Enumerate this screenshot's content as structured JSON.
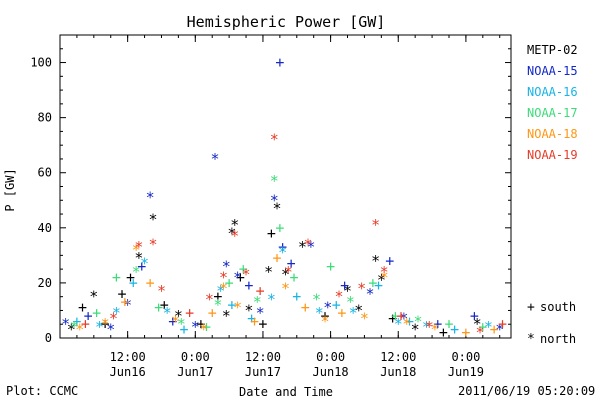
{
  "chart_data": {
    "type": "scatter",
    "title": "Hemispheric Power [GW]",
    "xlabel": "Date and Time",
    "ylabel": "P [GW]",
    "xlim": [
      "2011-06-16 00:00",
      "2011-06-19 08:00"
    ],
    "ylim": [
      0,
      110
    ],
    "yticks": [
      0,
      20,
      40,
      60,
      80,
      100
    ],
    "xticks": [
      {
        "x": "2011-06-16 12:00",
        "time": "12:00",
        "date": "Jun16"
      },
      {
        "x": "2011-06-17 00:00",
        "time": "0:00",
        "date": "Jun17"
      },
      {
        "x": "2011-06-17 12:00",
        "time": "12:00",
        "date": "Jun17"
      },
      {
        "x": "2011-06-18 00:00",
        "time": "0:00",
        "date": "Jun18"
      },
      {
        "x": "2011-06-18 12:00",
        "time": "12:00",
        "date": "Jun18"
      },
      {
        "x": "2011-06-19 00:00",
        "time": "0:00",
        "date": "Jun19"
      }
    ],
    "legend_position": "right",
    "markers": {
      "south": "+",
      "north": "*"
    },
    "marker_legend": [
      {
        "symbol": "+",
        "label": "south"
      },
      {
        "symbol": "*",
        "label": "north"
      }
    ],
    "series": [
      {
        "name": "METP-02",
        "color": "#000000",
        "points": [
          [
            "2011-06-16 02:00",
            3,
            "north"
          ],
          [
            "2011-06-16 04:00",
            11,
            "south"
          ],
          [
            "2011-06-16 06:00",
            15,
            "north"
          ],
          [
            "2011-06-16 08:00",
            5,
            "south"
          ],
          [
            "2011-06-16 11:00",
            16,
            "south"
          ],
          [
            "2011-06-16 12:30",
            22,
            "south"
          ],
          [
            "2011-06-16 14:00",
            29,
            "north"
          ],
          [
            "2011-06-16 16:30",
            43,
            "north"
          ],
          [
            "2011-06-16 18:30",
            12,
            "south"
          ],
          [
            "2011-06-16 21:00",
            8,
            "north"
          ],
          [
            "2011-06-17 01:00",
            5,
            "south"
          ],
          [
            "2011-06-17 04:00",
            15,
            "south"
          ],
          [
            "2011-06-17 05:30",
            8,
            "north"
          ],
          [
            "2011-06-17 06:30",
            38,
            "north"
          ],
          [
            "2011-06-17 07:00",
            41,
            "north"
          ],
          [
            "2011-06-17 08:00",
            22,
            "south"
          ],
          [
            "2011-06-17 09:30",
            10,
            "north"
          ],
          [
            "2011-06-17 12:00",
            5,
            "south"
          ],
          [
            "2011-06-17 13:00",
            24,
            "north"
          ],
          [
            "2011-06-17 13:30",
            38,
            "south"
          ],
          [
            "2011-06-17 14:30",
            47,
            "north"
          ],
          [
            "2011-06-17 16:00",
            23,
            "north"
          ],
          [
            "2011-06-17 19:00",
            33,
            "north"
          ],
          [
            "2011-06-17 23:00",
            8,
            "south"
          ],
          [
            "2011-06-18 03:00",
            17,
            "north"
          ],
          [
            "2011-06-18 05:00",
            10,
            "north"
          ],
          [
            "2011-06-18 08:00",
            28,
            "north"
          ],
          [
            "2011-06-18 09:00",
            21,
            "north"
          ],
          [
            "2011-06-18 11:00",
            7,
            "south"
          ],
          [
            "2011-06-18 15:00",
            3,
            "north"
          ],
          [
            "2011-06-18 20:00",
            2,
            "south"
          ],
          [
            "2011-06-19 02:00",
            5,
            "north"
          ]
        ]
      },
      {
        "name": "NOAA-15",
        "color": "#1428c8",
        "points": [
          [
            "2011-06-16 01:00",
            5,
            "north"
          ],
          [
            "2011-06-16 05:00",
            8,
            "south"
          ],
          [
            "2011-06-16 09:00",
            3,
            "north"
          ],
          [
            "2011-06-16 12:00",
            12,
            "north"
          ],
          [
            "2011-06-16 14:30",
            26,
            "south"
          ],
          [
            "2011-06-16 16:00",
            51,
            "north"
          ],
          [
            "2011-06-16 20:00",
            6,
            "south"
          ],
          [
            "2011-06-17 00:00",
            4,
            "north"
          ],
          [
            "2011-06-17 03:30",
            65,
            "north"
          ],
          [
            "2011-06-17 05:30",
            26,
            "north"
          ],
          [
            "2011-06-17 07:30",
            22,
            "north"
          ],
          [
            "2011-06-17 09:30",
            19,
            "south"
          ],
          [
            "2011-06-17 11:30",
            9,
            "north"
          ],
          [
            "2011-06-17 14:00",
            50,
            "north"
          ],
          [
            "2011-06-17 15:00",
            100,
            "south"
          ],
          [
            "2011-06-17 15:30",
            33,
            "south"
          ],
          [
            "2011-06-17 17:00",
            27,
            "south"
          ],
          [
            "2011-06-17 20:30",
            33,
            "north"
          ],
          [
            "2011-06-17 23:30",
            11,
            "north"
          ],
          [
            "2011-06-18 02:30",
            19,
            "south"
          ],
          [
            "2011-06-18 07:00",
            16,
            "north"
          ],
          [
            "2011-06-18 10:30",
            28,
            "south"
          ],
          [
            "2011-06-18 13:00",
            7,
            "north"
          ],
          [
            "2011-06-18 19:00",
            5,
            "south"
          ],
          [
            "2011-06-19 01:30",
            8,
            "south"
          ],
          [
            "2011-06-19 06:00",
            3,
            "north"
          ]
        ]
      },
      {
        "name": "NOAA-16",
        "color": "#18b4e6",
        "points": [
          [
            "2011-06-16 03:00",
            6,
            "south"
          ],
          [
            "2011-06-16 07:00",
            4,
            "north"
          ],
          [
            "2011-06-16 10:00",
            9,
            "north"
          ],
          [
            "2011-06-16 13:00",
            20,
            "south"
          ],
          [
            "2011-06-16 15:00",
            27,
            "north"
          ],
          [
            "2011-06-16 19:00",
            9,
            "north"
          ],
          [
            "2011-06-16 22:00",
            3,
            "south"
          ],
          [
            "2011-06-17 04:30",
            17,
            "north"
          ],
          [
            "2011-06-17 06:30",
            12,
            "south"
          ],
          [
            "2011-06-17 10:00",
            7,
            "south"
          ],
          [
            "2011-06-17 13:30",
            14,
            "north"
          ],
          [
            "2011-06-17 15:30",
            31,
            "north"
          ],
          [
            "2011-06-17 18:00",
            15,
            "south"
          ],
          [
            "2011-06-17 22:00",
            9,
            "north"
          ],
          [
            "2011-06-18 01:00",
            12,
            "south"
          ],
          [
            "2011-06-18 04:00",
            9,
            "north"
          ],
          [
            "2011-06-18 08:30",
            19,
            "south"
          ],
          [
            "2011-06-18 12:00",
            5,
            "north"
          ],
          [
            "2011-06-18 14:00",
            6,
            "south"
          ],
          [
            "2011-06-18 17:00",
            4,
            "north"
          ],
          [
            "2011-06-18 22:00",
            3,
            "south"
          ],
          [
            "2011-06-19 04:00",
            4,
            "north"
          ]
        ]
      },
      {
        "name": "NOAA-17",
        "color": "#3cdc78",
        "points": [
          [
            "2011-06-16 02:30",
            4,
            "north"
          ],
          [
            "2011-06-16 06:30",
            9,
            "south"
          ],
          [
            "2011-06-16 10:00",
            22,
            "south"
          ],
          [
            "2011-06-16 13:30",
            24,
            "north"
          ],
          [
            "2011-06-16 17:30",
            11,
            "south"
          ],
          [
            "2011-06-16 21:30",
            5,
            "north"
          ],
          [
            "2011-06-17 02:00",
            4,
            "south"
          ],
          [
            "2011-06-17 04:00",
            12,
            "north"
          ],
          [
            "2011-06-17 06:00",
            20,
            "south"
          ],
          [
            "2011-06-17 08:30",
            25,
            "south"
          ],
          [
            "2011-06-17 11:00",
            13,
            "north"
          ],
          [
            "2011-06-17 14:00",
            57,
            "north"
          ],
          [
            "2011-06-17 15:00",
            40,
            "south"
          ],
          [
            "2011-06-17 17:30",
            22,
            "south"
          ],
          [
            "2011-06-17 21:30",
            14,
            "north"
          ],
          [
            "2011-06-18 00:00",
            26,
            "south"
          ],
          [
            "2011-06-18 03:30",
            13,
            "north"
          ],
          [
            "2011-06-18 07:30",
            20,
            "south"
          ],
          [
            "2011-06-18 11:30",
            8,
            "south"
          ],
          [
            "2011-06-18 15:30",
            6,
            "north"
          ],
          [
            "2011-06-18 21:00",
            5,
            "south"
          ],
          [
            "2011-06-19 03:00",
            4,
            "south"
          ]
        ]
      },
      {
        "name": "NOAA-18",
        "color": "#ff9614",
        "points": [
          [
            "2011-06-16 03:30",
            3,
            "north"
          ],
          [
            "2011-06-16 08:00",
            5,
            "north"
          ],
          [
            "2011-06-16 11:30",
            13,
            "south"
          ],
          [
            "2011-06-16 13:30",
            32,
            "north"
          ],
          [
            "2011-06-16 16:00",
            20,
            "south"
          ],
          [
            "2011-06-16 20:30",
            6,
            "north"
          ],
          [
            "2011-06-17 01:30",
            3,
            "north"
          ],
          [
            "2011-06-17 03:00",
            9,
            "south"
          ],
          [
            "2011-06-17 05:00",
            18,
            "north"
          ],
          [
            "2011-06-17 07:30",
            11,
            "north"
          ],
          [
            "2011-06-17 10:30",
            6,
            "south"
          ],
          [
            "2011-06-17 14:30",
            29,
            "south"
          ],
          [
            "2011-06-17 16:00",
            18,
            "north"
          ],
          [
            "2011-06-17 19:30",
            11,
            "south"
          ],
          [
            "2011-06-17 23:00",
            6,
            "north"
          ],
          [
            "2011-06-18 02:00",
            9,
            "south"
          ],
          [
            "2011-06-18 06:00",
            7,
            "north"
          ],
          [
            "2011-06-18 09:30",
            22,
            "north"
          ],
          [
            "2011-06-18 13:30",
            5,
            "north"
          ],
          [
            "2011-06-18 18:30",
            3,
            "north"
          ],
          [
            "2011-06-19 00:00",
            2,
            "south"
          ],
          [
            "2011-06-19 05:00",
            3,
            "south"
          ]
        ]
      },
      {
        "name": "NOAA-19",
        "color": "#e63c28",
        "points": [
          [
            "2011-06-16 04:30",
            5,
            "south"
          ],
          [
            "2011-06-16 09:30",
            7,
            "north"
          ],
          [
            "2011-06-16 14:00",
            33,
            "north"
          ],
          [
            "2011-06-16 16:30",
            34,
            "north"
          ],
          [
            "2011-06-16 18:00",
            17,
            "north"
          ],
          [
            "2011-06-16 23:00",
            9,
            "south"
          ],
          [
            "2011-06-17 02:30",
            14,
            "north"
          ],
          [
            "2011-06-17 05:00",
            22,
            "north"
          ],
          [
            "2011-06-17 07:00",
            37,
            "north"
          ],
          [
            "2011-06-17 09:00",
            23,
            "north"
          ],
          [
            "2011-06-17 11:30",
            17,
            "south"
          ],
          [
            "2011-06-17 14:00",
            72,
            "north"
          ],
          [
            "2011-06-17 16:30",
            24,
            "north"
          ],
          [
            "2011-06-17 20:00",
            34,
            "north"
          ],
          [
            "2011-06-18 01:30",
            15,
            "north"
          ],
          [
            "2011-06-18 05:30",
            18,
            "north"
          ],
          [
            "2011-06-18 08:00",
            41,
            "north"
          ],
          [
            "2011-06-18 09:30",
            24,
            "north"
          ],
          [
            "2011-06-18 12:30",
            8,
            "south"
          ],
          [
            "2011-06-18 17:30",
            4,
            "north"
          ],
          [
            "2011-06-19 02:30",
            2,
            "north"
          ],
          [
            "2011-06-19 06:30",
            5,
            "south"
          ]
        ]
      }
    ]
  },
  "footer": {
    "left": "Plot: CCMC",
    "right": "2011/06/19 05:20:09"
  }
}
